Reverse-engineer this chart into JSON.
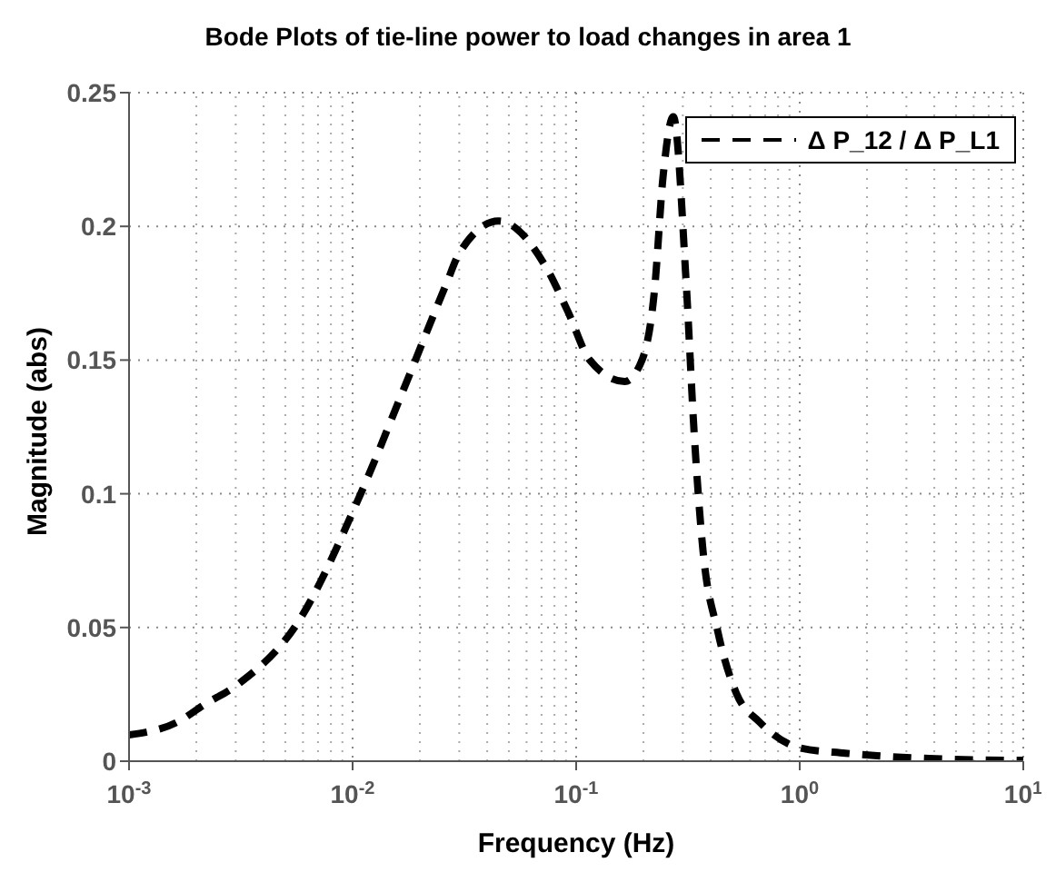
{
  "chart_data": {
    "type": "line",
    "title": "Bode Plots of tie-line power to load changes in area 1",
    "xlabel": "Frequency  (Hz)",
    "ylabel": "Magnitude (abs)",
    "log": "x",
    "xlim": [
      0.001,
      10
    ],
    "xticks": [
      {
        "value": 0.001,
        "label": "10$^{-3}$"
      },
      {
        "value": 0.01,
        "label": "10$^{-2}$"
      },
      {
        "value": 0.1,
        "label": "10$^{-1}$"
      },
      {
        "value": 1,
        "label": "10$^{0}$"
      },
      {
        "value": 10,
        "label": "10$^{1}$"
      }
    ],
    "ylim": [
      0,
      0.25
    ],
    "yticks": [
      0,
      0.05,
      0.1,
      0.15,
      0.2,
      0.25
    ],
    "grid": true,
    "legend": "top right",
    "marker": "none",
    "line_style": "dashed",
    "x": [
      0.001,
      0.00165,
      0.00216,
      0.0031,
      0.0056,
      0.0108,
      0.0169,
      0.0264,
      0.03,
      0.045,
      0.073,
      0.092,
      0.115,
      0.165,
      0.197,
      0.224,
      0.245,
      0.272,
      0.31,
      0.337,
      0.368,
      0.43,
      0.52,
      0.66,
      1.0,
      1.6,
      3.8,
      10
    ],
    "series": [
      {
        "name": "Δ P_12 / Δ P_L1",
        "color": "#000000",
        "values": [
          0.0098,
          0.0147,
          0.021,
          0.029,
          0.051,
          0.0995,
          0.139,
          0.179,
          0.19,
          0.202,
          0.185,
          0.168,
          0.15,
          0.142,
          0.15,
          0.176,
          0.219,
          0.241,
          0.18,
          0.123,
          0.08,
          0.0485,
          0.0255,
          0.0147,
          0.005,
          0.003,
          0.001,
          0.0003
        ]
      }
    ]
  }
}
